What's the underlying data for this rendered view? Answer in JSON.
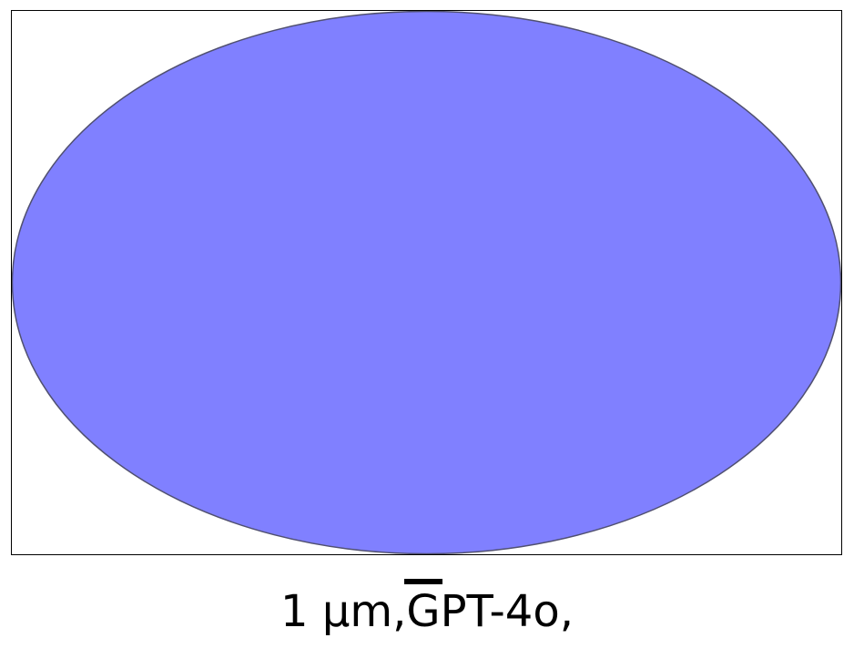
{
  "shape": {
    "name": "ellipse",
    "fill_color": "#8080ff",
    "stroke_color": "#505070"
  },
  "caption": {
    "prefix": "1 µm,",
    "overlined_letter": "G",
    "suffix": "PT-4o,"
  }
}
